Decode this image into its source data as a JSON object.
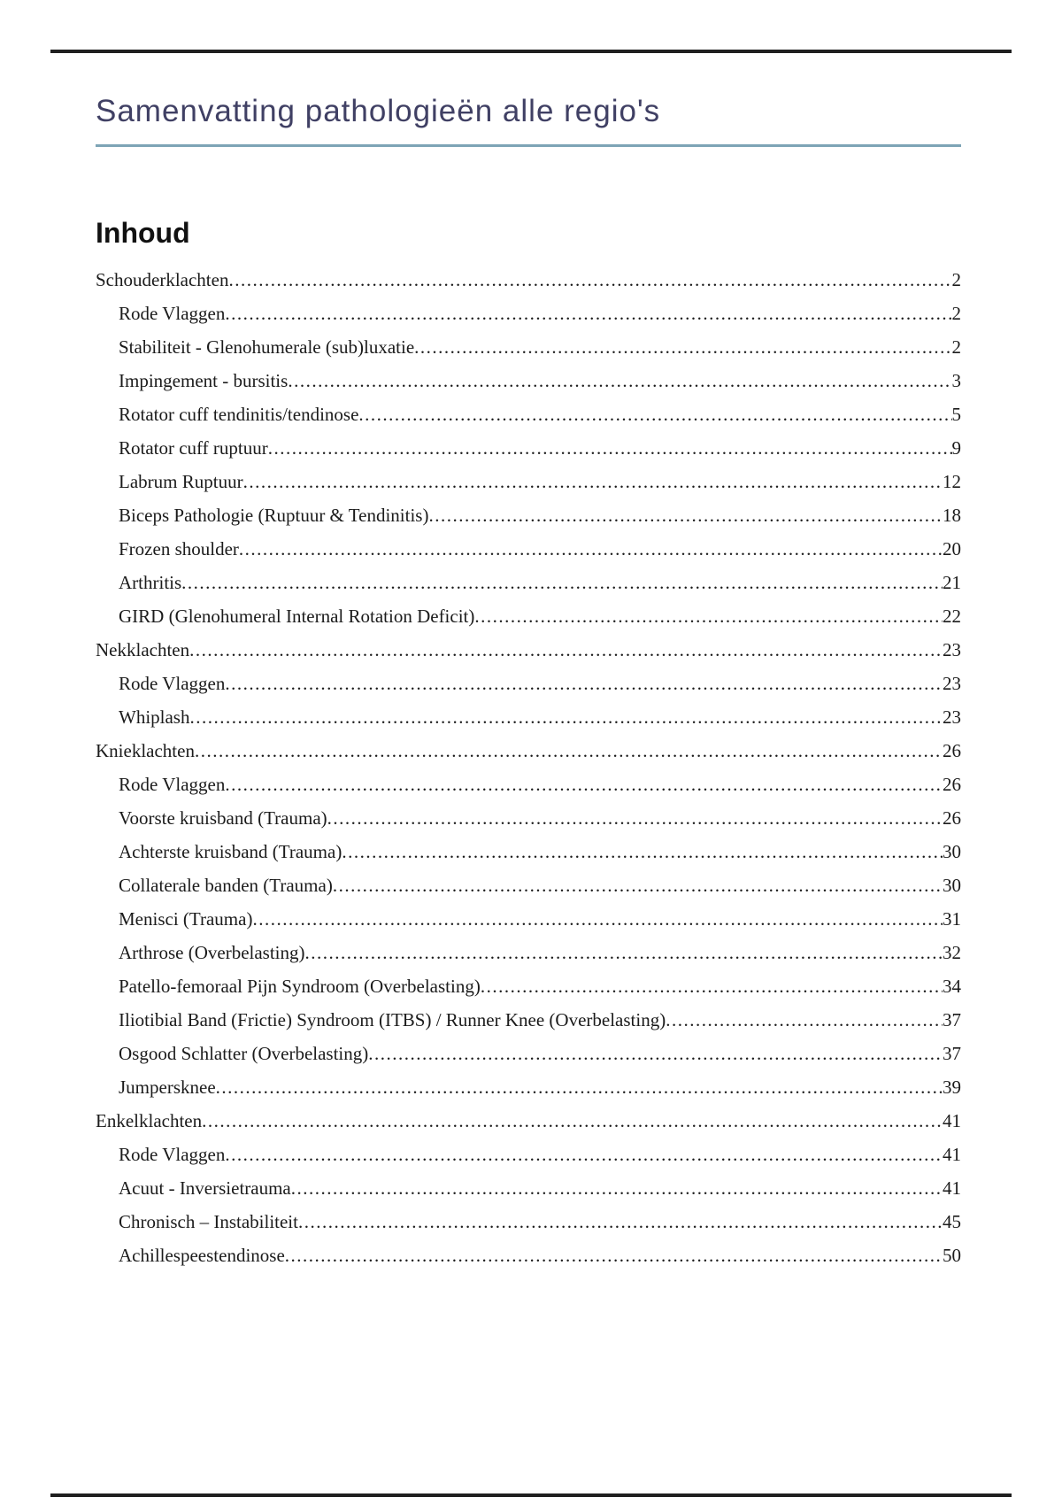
{
  "document": {
    "title": "Samenvatting pathologieën alle regio's",
    "toc_heading": "Inhoud"
  },
  "colors": {
    "title_text": "#404064",
    "title_underline": "#7da4b6",
    "page_rule": "#1f1f1f",
    "body_text": "#1b1b1b"
  },
  "toc": {
    "entries": [
      {
        "label": "Schouderklachten",
        "page": "2",
        "level": 1
      },
      {
        "label": "Rode Vlaggen",
        "page": "2",
        "level": 2
      },
      {
        "label": "Stabiliteit - Glenohumerale (sub)luxatie",
        "page": "2",
        "level": 2
      },
      {
        "label": "Impingement - bursitis",
        "page": "3",
        "level": 2
      },
      {
        "label": "Rotator cuff tendinitis/tendinose",
        "page": "5",
        "level": 2
      },
      {
        "label": "Rotator cuff ruptuur",
        "page": "9",
        "level": 2
      },
      {
        "label": "Labrum Ruptuur",
        "page": "12",
        "level": 2
      },
      {
        "label": "Biceps Pathologie (Ruptuur & Tendinitis)",
        "page": "18",
        "level": 2
      },
      {
        "label": "Frozen shoulder",
        "page": "20",
        "level": 2
      },
      {
        "label": "Arthritis",
        "page": "21",
        "level": 2
      },
      {
        "label": "GIRD (Glenohumeral Internal Rotation Deficit)",
        "page": "22",
        "level": 2
      },
      {
        "label": "Nekklachten",
        "page": "23",
        "level": 1
      },
      {
        "label": "Rode Vlaggen",
        "page": "23",
        "level": 2
      },
      {
        "label": "Whiplash",
        "page": "23",
        "level": 2
      },
      {
        "label": "Knieklachten",
        "page": "26",
        "level": 1
      },
      {
        "label": "Rode Vlaggen",
        "page": "26",
        "level": 2
      },
      {
        "label": "Voorste kruisband (Trauma)",
        "page": "26",
        "level": 2
      },
      {
        "label": "Achterste kruisband (Trauma)",
        "page": "30",
        "level": 2
      },
      {
        "label": "Collaterale banden (Trauma)",
        "page": "30",
        "level": 2
      },
      {
        "label": "Menisci (Trauma)",
        "page": "31",
        "level": 2
      },
      {
        "label": "Arthrose (Overbelasting)",
        "page": "32",
        "level": 2
      },
      {
        "label": "Patello-femoraal Pijn Syndroom (Overbelasting)",
        "page": "34",
        "level": 2
      },
      {
        "label": "Iliotibial Band (Frictie) Syndroom (ITBS) / Runner Knee (Overbelasting)",
        "page": "37",
        "level": 2
      },
      {
        "label": "Osgood Schlatter (Overbelasting)",
        "page": "37",
        "level": 2
      },
      {
        "label": "Jumpersknee",
        "page": "39",
        "level": 2
      },
      {
        "label": "Enkelklachten",
        "page": "41",
        "level": 1
      },
      {
        "label": "Rode Vlaggen",
        "page": "41",
        "level": 2
      },
      {
        "label": "Acuut - Inversietrauma",
        "page": "41",
        "level": 2
      },
      {
        "label": "Chronisch – Instabiliteit",
        "page": "45",
        "level": 2
      },
      {
        "label": "Achillespeestendinose",
        "page": "50",
        "level": 2
      }
    ]
  }
}
